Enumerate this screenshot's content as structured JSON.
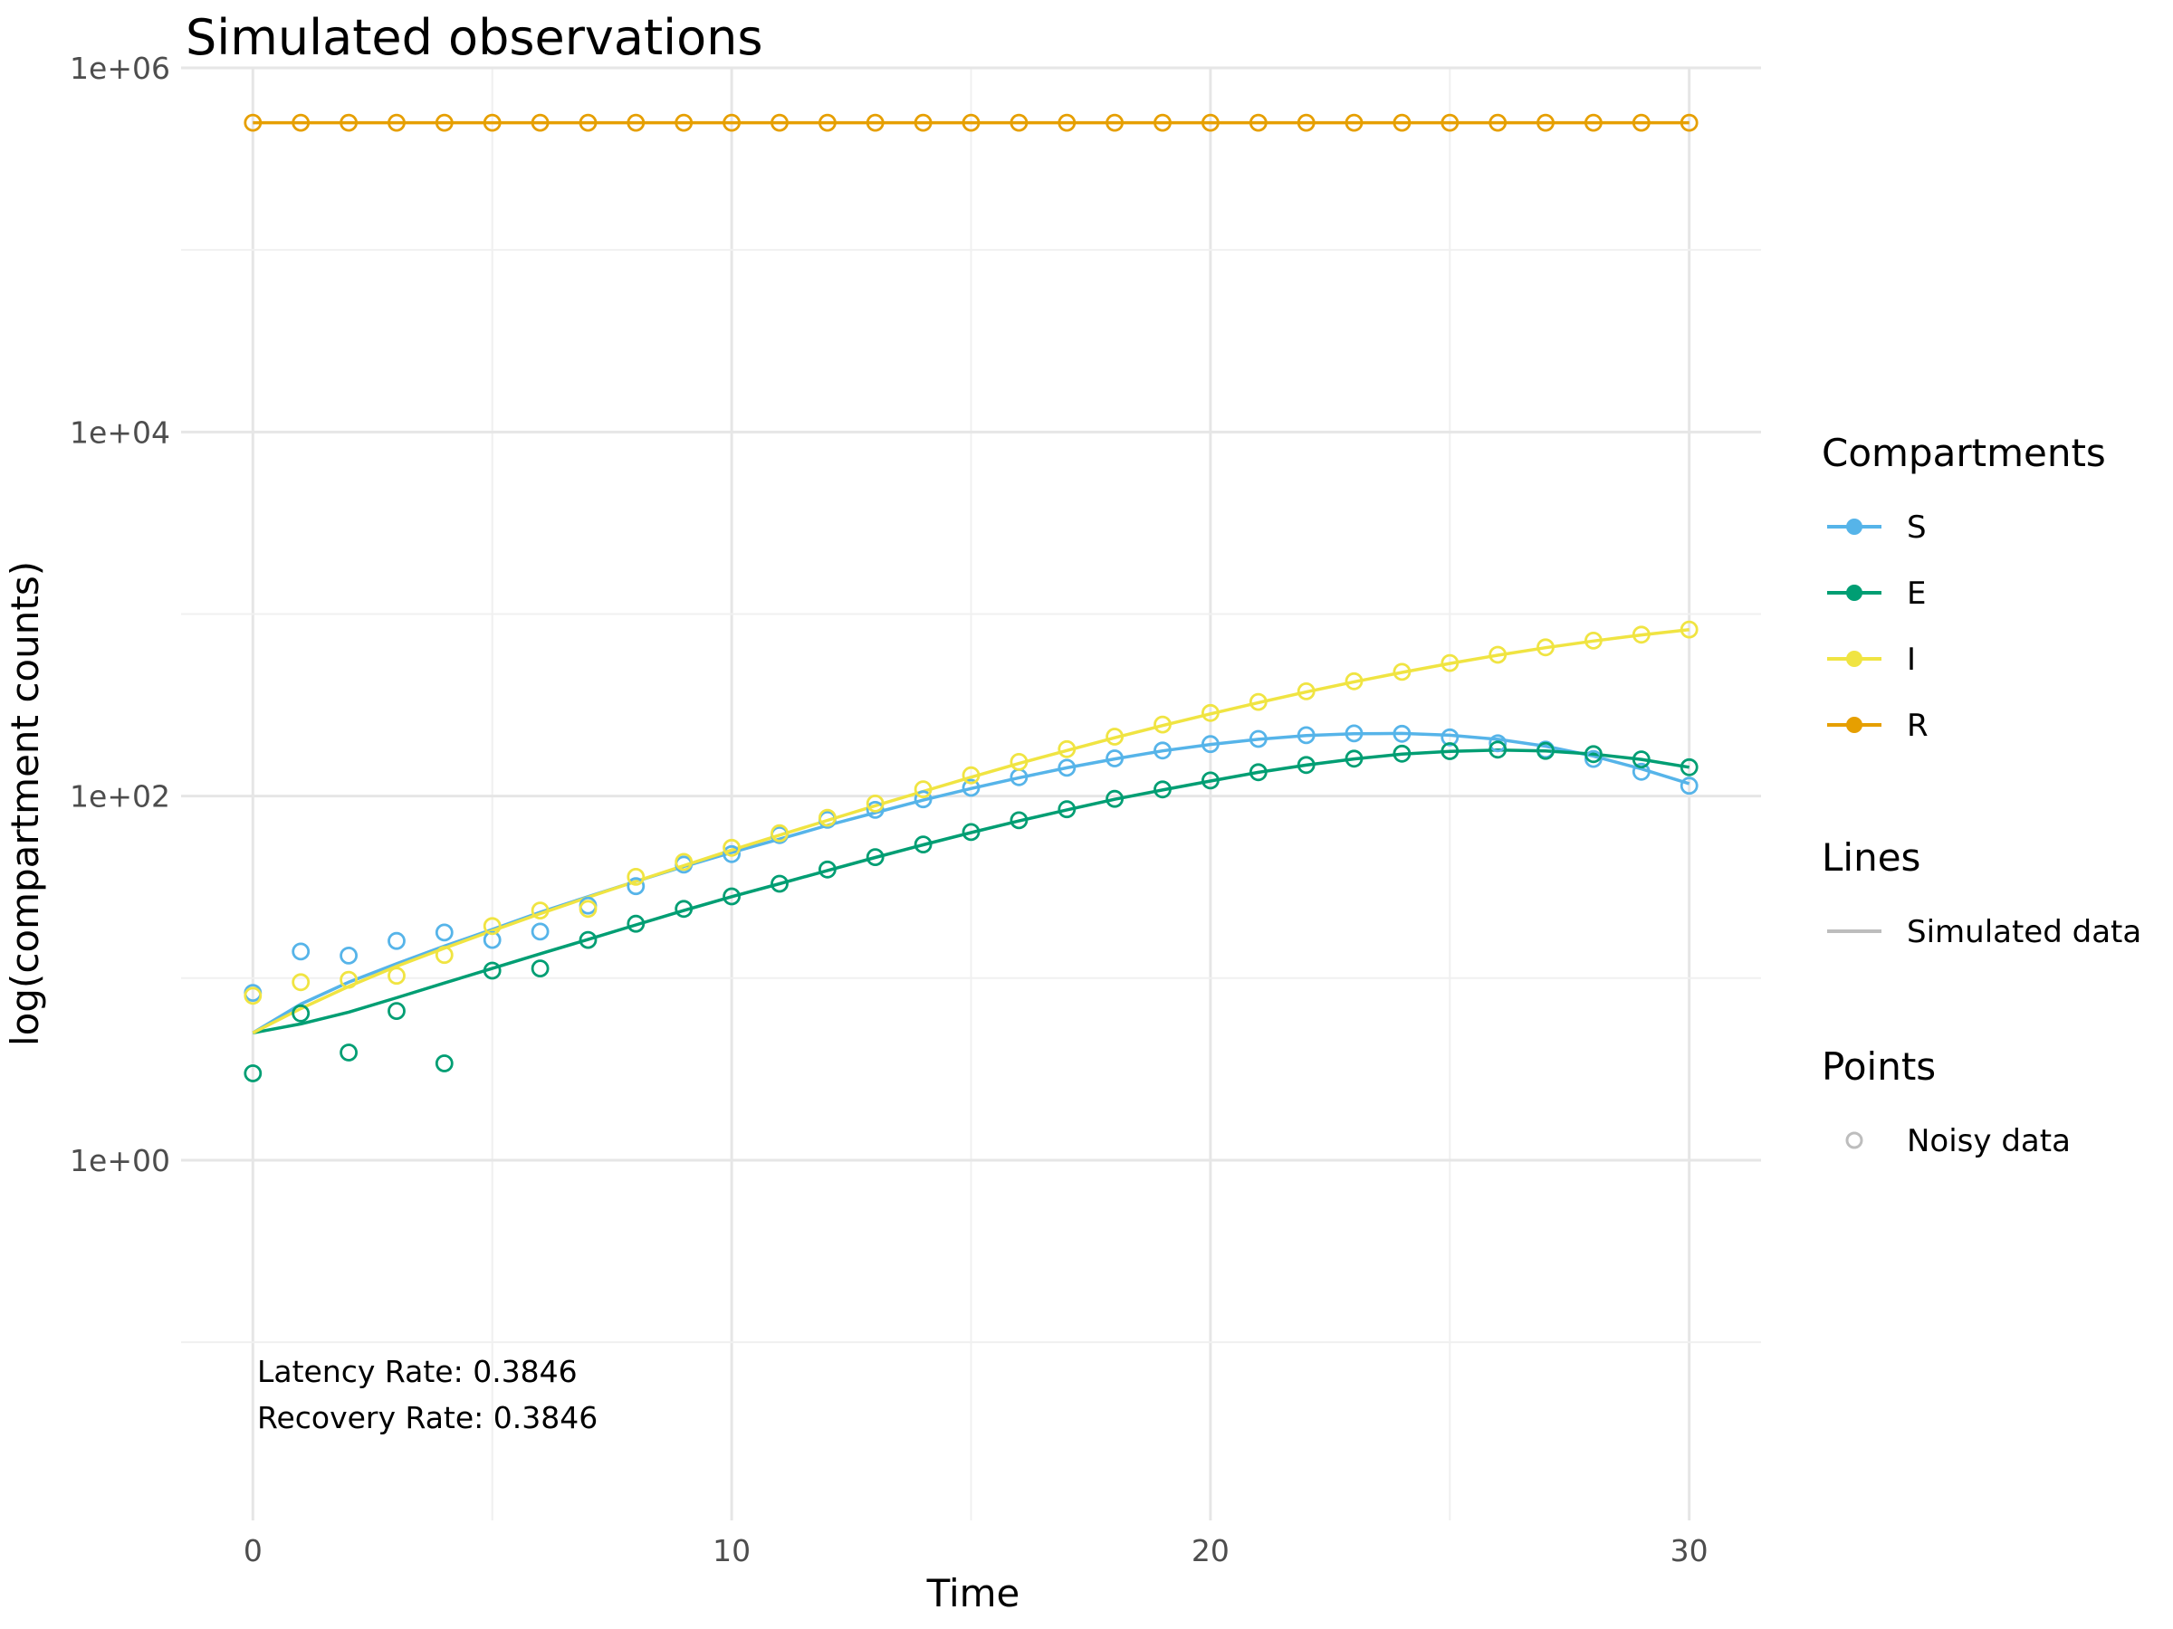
{
  "chart_data": {
    "type": "line",
    "title": "Simulated observations",
    "xlabel": "Time",
    "ylabel": "log(compartment counts)",
    "x_scale": "linear",
    "y_scale": "log10",
    "xlim": [
      -1.5,
      31.5
    ],
    "ylim": [
      0.0105,
      1000000
    ],
    "x_ticks": [
      0,
      10,
      20,
      30
    ],
    "x_tick_labels": [
      "0",
      "10",
      "20",
      "30"
    ],
    "y_ticks": [
      1,
      100,
      10000,
      1000000
    ],
    "y_tick_labels": [
      "1e+00",
      "1e+02",
      "1e+04",
      "1e+06"
    ],
    "grid": true,
    "legend_position": "right",
    "legend": {
      "compartments_title": "Compartments",
      "lines_title": "Lines",
      "lines_label": "Simulated data",
      "points_title": "Points",
      "points_label": "Noisy data"
    },
    "annotations": [
      "Latency Rate: 0.3846",
      "Recovery Rate: 0.3846"
    ],
    "x": [
      0,
      1,
      2,
      3,
      4,
      5,
      6,
      7,
      8,
      9,
      10,
      11,
      12,
      13,
      14,
      15,
      16,
      17,
      18,
      19,
      20,
      21,
      22,
      23,
      24,
      25,
      26,
      27,
      28,
      29,
      30
    ],
    "series": [
      {
        "name": "S",
        "color": "#56B4E9",
        "line": [
          5,
          7.2,
          9.5,
          12,
          15,
          18.5,
          23,
          28,
          34,
          41,
          49,
          58,
          69,
          81,
          95,
          110,
          126,
          143,
          160,
          177,
          192,
          205,
          215,
          220,
          221,
          216,
          205,
          188,
          166,
          141,
          117
        ],
        "points": [
          8.3,
          14,
          13.3,
          16,
          17.8,
          16.2,
          18,
          25,
          32,
          42,
          48,
          61,
          74,
          84,
          96,
          111,
          127,
          143,
          161,
          178,
          193,
          206,
          216,
          221,
          220,
          210,
          195,
          180,
          160,
          136,
          114
        ]
      },
      {
        "name": "E",
        "color": "#009E73",
        "line": [
          5,
          5.6,
          6.5,
          7.8,
          9.4,
          11.3,
          13.6,
          16.3,
          19.6,
          23.5,
          28,
          33,
          39,
          46,
          54,
          63,
          73,
          84,
          96,
          108,
          121,
          135,
          148,
          160,
          170,
          176,
          179,
          177,
          170,
          159,
          144
        ],
        "points": [
          3,
          6.4,
          3.9,
          6.6,
          3.4,
          11,
          11.3,
          16.2,
          19.9,
          24,
          28.1,
          33,
          39.5,
          46.2,
          54.2,
          63.4,
          73.6,
          84.6,
          96.5,
          108.7,
          121.8,
          135.1,
          148.2,
          160.5,
          171,
          176.5,
          180,
          177,
          170,
          159,
          144
        ]
      },
      {
        "name": "I",
        "color": "#F0E442",
        "line": [
          5,
          6.8,
          9,
          11.6,
          14.6,
          18.2,
          22.6,
          27.8,
          34,
          41.5,
          50.5,
          61,
          73.5,
          88.5,
          106,
          127,
          151,
          178,
          209,
          244,
          283,
          326,
          373,
          424,
          478,
          535,
          594,
          653,
          711,
          767,
          820
        ],
        "points": [
          8,
          9.5,
          9.8,
          10.3,
          13.4,
          19.3,
          23.5,
          24,
          36,
          43.5,
          52,
          62.5,
          76,
          91,
          109,
          130,
          154,
          181,
          212,
          247,
          286,
          329,
          376,
          427,
          481,
          538,
          597,
          656,
          714,
          770,
          822
        ]
      },
      {
        "name": "R",
        "color": "#E69F00",
        "line": [
          500000,
          500000,
          500000,
          500000,
          500000,
          500000,
          500000,
          500000,
          500000,
          500000,
          500000,
          500000,
          500000,
          500000,
          500000,
          500000,
          500000,
          500000,
          500000,
          500000,
          500000,
          500000,
          500000,
          500000,
          500000,
          500000,
          500000,
          500000,
          500000,
          500000,
          500000
        ],
        "points": [
          500000,
          500000,
          500000,
          500000,
          500000,
          500000,
          500000,
          500000,
          500000,
          500000,
          500000,
          500000,
          500000,
          500000,
          500000,
          500000,
          500000,
          500000,
          500000,
          500000,
          500000,
          500000,
          500000,
          500000,
          500000,
          500000,
          500000,
          500000,
          500000,
          500000,
          500000
        ]
      }
    ]
  }
}
